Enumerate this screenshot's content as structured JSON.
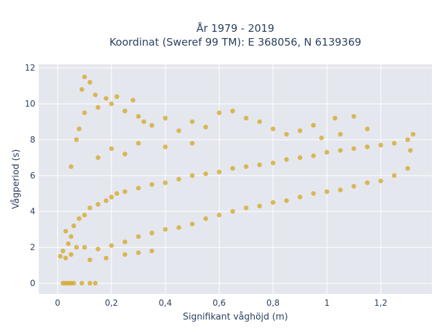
{
  "chart_data": {
    "type": "scatter",
    "title_lines": [
      "År 1979 - 2019",
      "Koordinat (Sweref 99 TM): E 368056, N 6139369"
    ],
    "xlabel": "Signifikant våghöjd (m)",
    "ylabel": "Vågperiod (s)",
    "xlim": [
      -0.07,
      1.39
    ],
    "ylim": [
      -0.6,
      12.2
    ],
    "x_ticks": [
      0,
      0.2,
      0.4,
      0.6,
      0.8,
      1,
      1.2
    ],
    "x_tick_labels": [
      "0",
      "0,2",
      "0,4",
      "0,6",
      "0,8",
      "1",
      "1,2"
    ],
    "y_ticks": [
      0,
      2,
      4,
      6,
      8,
      10,
      12
    ],
    "y_tick_labels": [
      "0",
      "2",
      "4",
      "6",
      "8",
      "10",
      "12"
    ],
    "grid": true,
    "legend": "none",
    "marker_color": "#d4a520",
    "plot_background": "#e5e7ef",
    "series": [
      {
        "points": [
          [
            0.01,
            1.5
          ],
          [
            0.02,
            1.8
          ],
          [
            0.03,
            1.4
          ],
          [
            0.04,
            2.2
          ],
          [
            0.05,
            2.6
          ],
          [
            0.03,
            2.9
          ],
          [
            0.06,
            3.2
          ],
          [
            0.05,
            1.6
          ],
          [
            0.07,
            2.0
          ],
          [
            0.08,
            3.6
          ],
          [
            0.1,
            3.8
          ],
          [
            0.12,
            4.2
          ],
          [
            0.15,
            4.4
          ],
          [
            0.18,
            4.6
          ],
          [
            0.2,
            4.8
          ],
          [
            0.22,
            5.0
          ],
          [
            0.25,
            5.1
          ],
          [
            0.3,
            5.3
          ],
          [
            0.35,
            5.5
          ],
          [
            0.4,
            5.6
          ],
          [
            0.45,
            5.8
          ],
          [
            0.5,
            6.0
          ],
          [
            0.55,
            6.1
          ],
          [
            0.6,
            6.2
          ],
          [
            0.65,
            6.4
          ],
          [
            0.7,
            6.5
          ],
          [
            0.75,
            6.6
          ],
          [
            0.8,
            6.7
          ],
          [
            0.85,
            6.9
          ],
          [
            0.9,
            7.0
          ],
          [
            0.95,
            7.1
          ],
          [
            1.0,
            7.3
          ],
          [
            1.05,
            7.4
          ],
          [
            1.1,
            7.5
          ],
          [
            1.15,
            7.6
          ],
          [
            1.2,
            7.7
          ],
          [
            1.25,
            7.8
          ],
          [
            1.3,
            8.0
          ],
          [
            1.32,
            8.3
          ],
          [
            1.31,
            7.4
          ],
          [
            0.1,
            2.0
          ],
          [
            0.15,
            1.9
          ],
          [
            0.2,
            2.1
          ],
          [
            0.25,
            2.3
          ],
          [
            0.3,
            2.6
          ],
          [
            0.35,
            2.8
          ],
          [
            0.4,
            3.0
          ],
          [
            0.45,
            3.1
          ],
          [
            0.5,
            3.3
          ],
          [
            0.55,
            3.6
          ],
          [
            0.6,
            3.8
          ],
          [
            0.65,
            4.0
          ],
          [
            0.7,
            4.2
          ],
          [
            0.75,
            4.3
          ],
          [
            0.8,
            4.5
          ],
          [
            0.85,
            4.6
          ],
          [
            0.9,
            4.8
          ],
          [
            0.95,
            5.0
          ],
          [
            1.0,
            5.1
          ],
          [
            1.05,
            5.2
          ],
          [
            1.1,
            5.4
          ],
          [
            1.15,
            5.6
          ],
          [
            1.2,
            5.7
          ],
          [
            1.25,
            6.0
          ],
          [
            1.3,
            6.4
          ],
          [
            0.12,
            1.3
          ],
          [
            0.18,
            1.4
          ],
          [
            0.25,
            1.6
          ],
          [
            0.3,
            1.7
          ],
          [
            0.35,
            1.8
          ],
          [
            0.05,
            6.5
          ],
          [
            0.07,
            8.0
          ],
          [
            0.08,
            8.6
          ],
          [
            0.1,
            9.5
          ],
          [
            0.1,
            11.5
          ],
          [
            0.12,
            11.2
          ],
          [
            0.09,
            10.8
          ],
          [
            0.14,
            10.5
          ],
          [
            0.15,
            9.8
          ],
          [
            0.18,
            10.3
          ],
          [
            0.2,
            10.0
          ],
          [
            0.22,
            10.4
          ],
          [
            0.25,
            9.6
          ],
          [
            0.28,
            10.2
          ],
          [
            0.3,
            9.3
          ],
          [
            0.32,
            9.0
          ],
          [
            0.35,
            8.8
          ],
          [
            0.4,
            9.2
          ],
          [
            0.45,
            8.5
          ],
          [
            0.5,
            9.0
          ],
          [
            0.55,
            8.7
          ],
          [
            0.6,
            9.5
          ],
          [
            0.65,
            9.6
          ],
          [
            0.7,
            9.2
          ],
          [
            0.75,
            9.0
          ],
          [
            0.8,
            8.6
          ],
          [
            0.85,
            8.3
          ],
          [
            0.9,
            8.5
          ],
          [
            0.95,
            8.8
          ],
          [
            1.03,
            9.2
          ],
          [
            1.1,
            9.3
          ],
          [
            1.15,
            8.6
          ],
          [
            1.05,
            8.3
          ],
          [
            0.98,
            8.1
          ],
          [
            0.15,
            7.0
          ],
          [
            0.2,
            7.5
          ],
          [
            0.25,
            7.2
          ],
          [
            0.3,
            7.8
          ],
          [
            0.4,
            7.6
          ],
          [
            0.5,
            7.8
          ],
          [
            0.02,
            0.0
          ],
          [
            0.03,
            0.0
          ],
          [
            0.04,
            0.0
          ],
          [
            0.05,
            0.0
          ],
          [
            0.06,
            0.0
          ],
          [
            0.09,
            0.0
          ],
          [
            0.12,
            0.0
          ],
          [
            0.14,
            0.0
          ]
        ]
      }
    ]
  }
}
